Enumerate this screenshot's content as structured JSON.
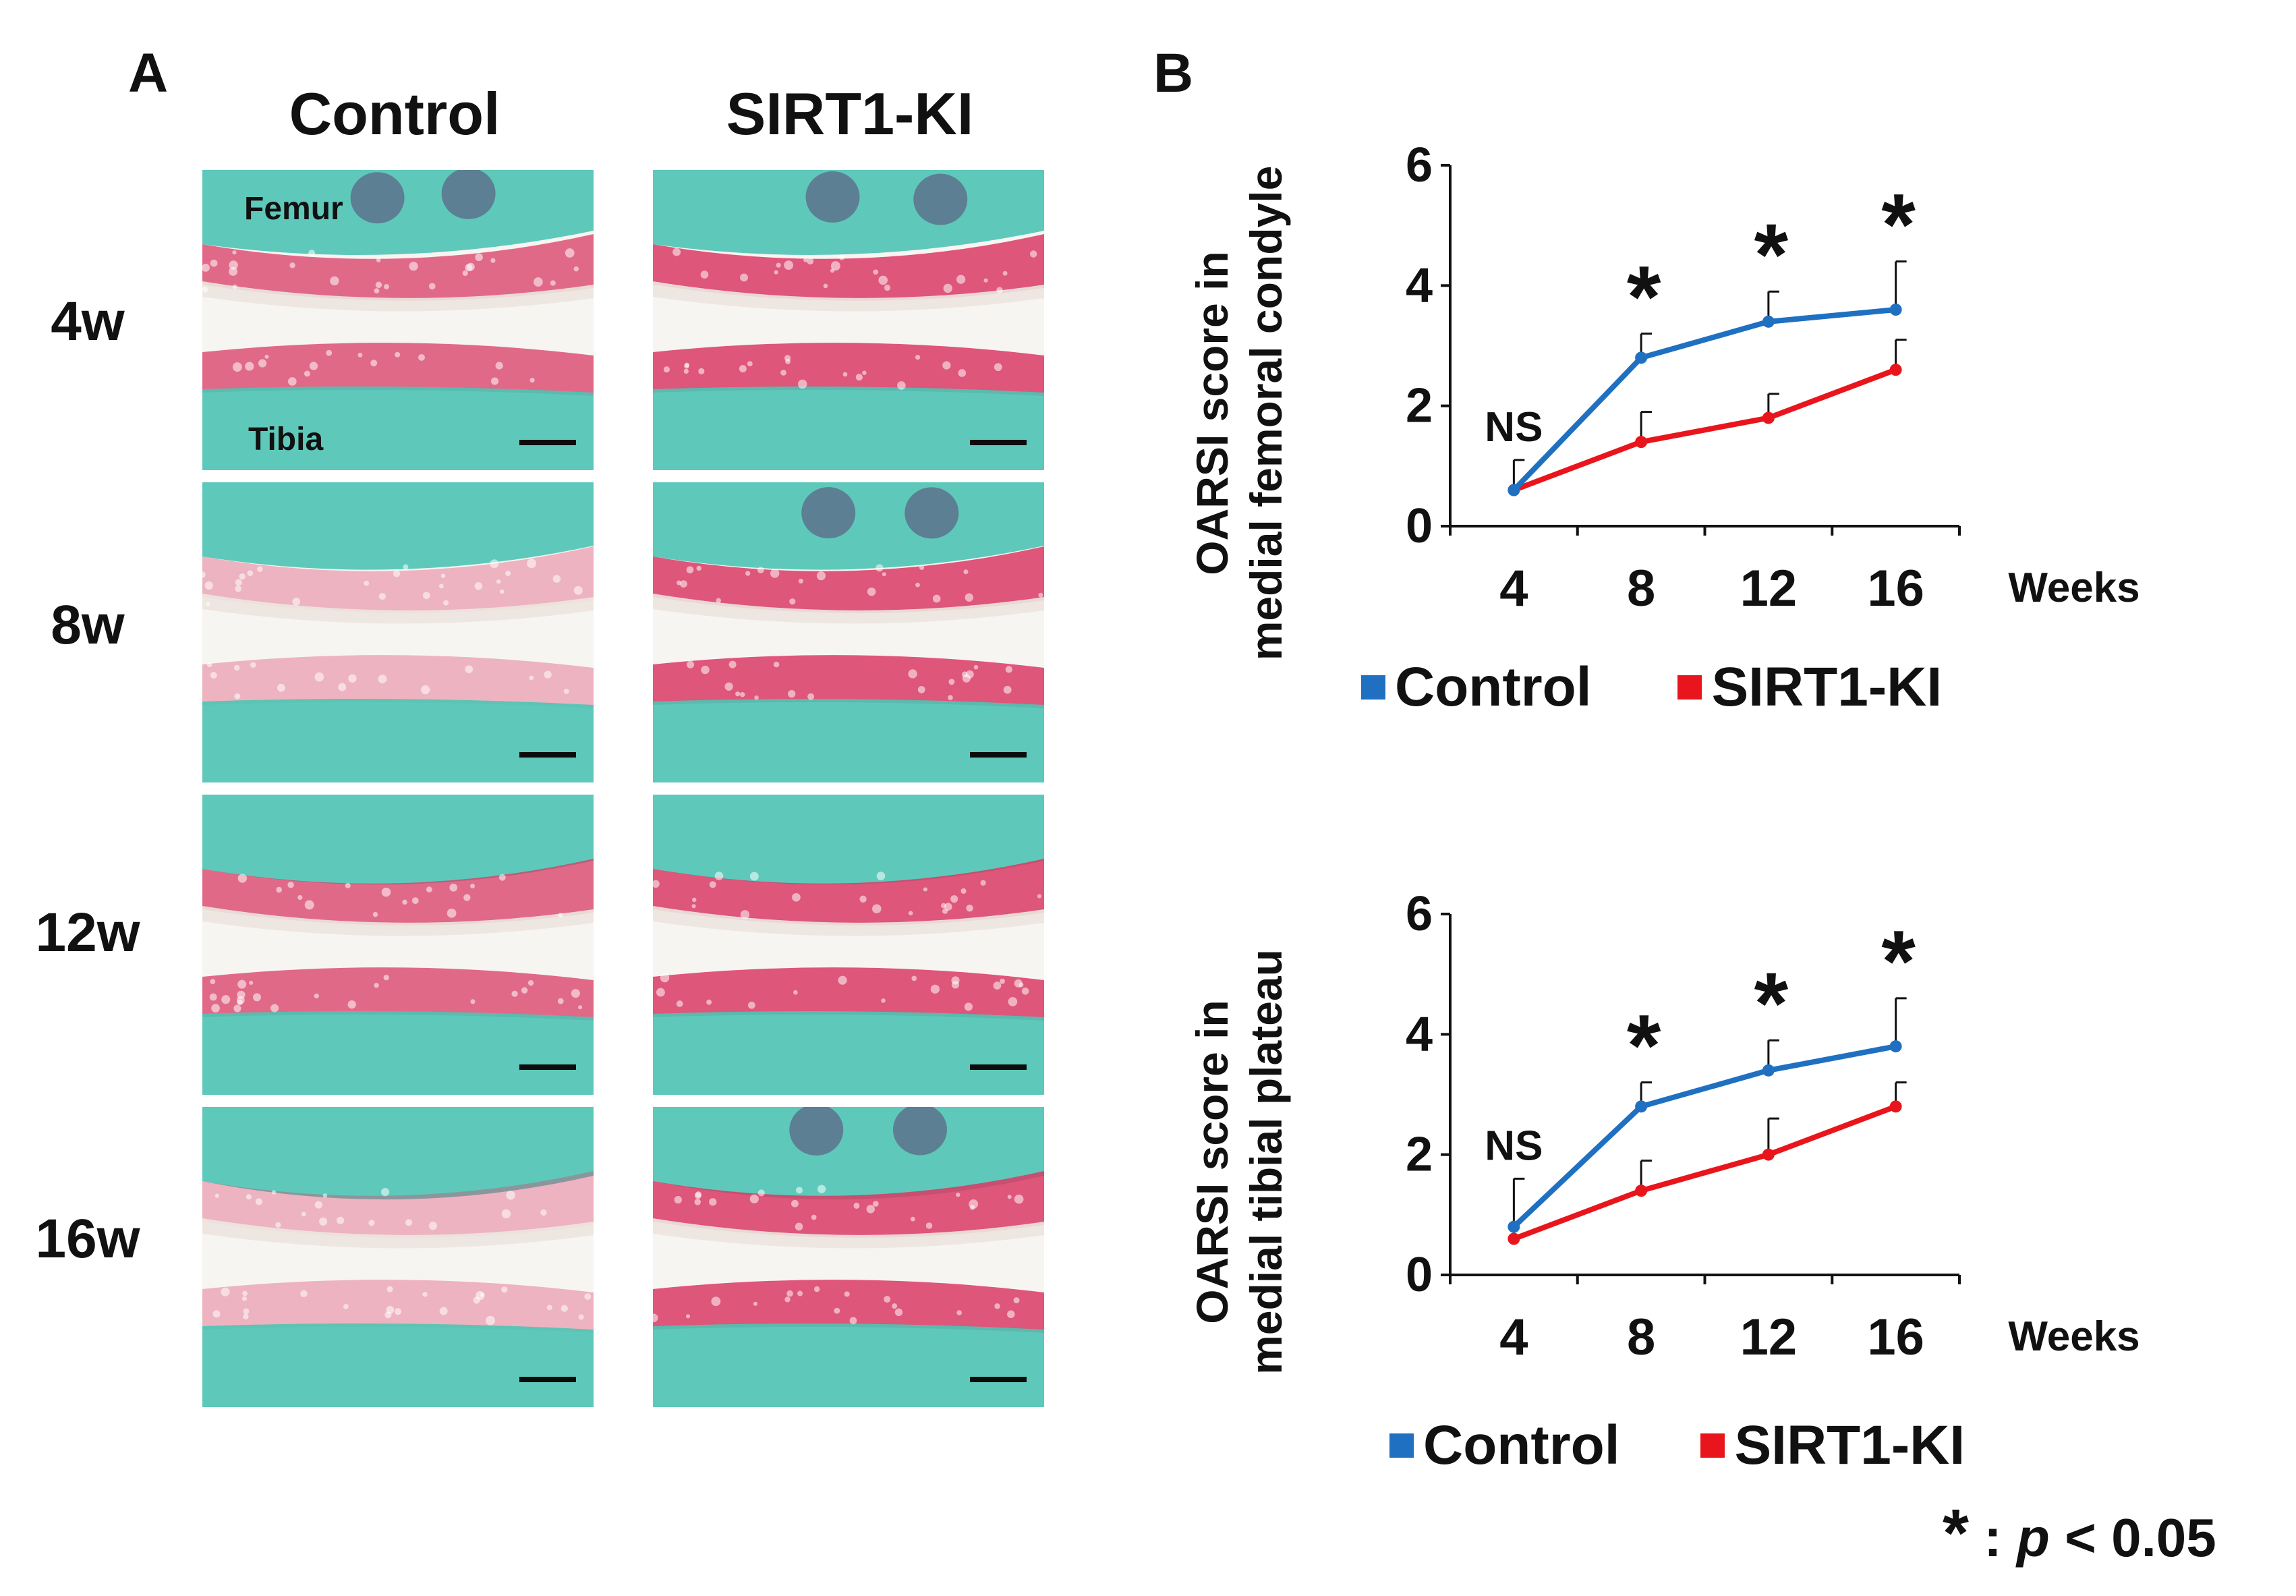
{
  "panel_a": {
    "letter": "A",
    "column_titles": [
      "Control",
      "SIRT1-KI"
    ],
    "row_labels": [
      "4w",
      "8w",
      "12w",
      "16w"
    ],
    "image_labels": {
      "femur": "Femur",
      "tibia": "Tibia"
    },
    "colors": {
      "cartilage_red": "#d93a64",
      "bone_cyan": "#4cc4b4",
      "matrix_white": "#ece6df",
      "marrow_purple": "#5b4f7a"
    }
  },
  "panel_b": {
    "letter": "B",
    "legend": {
      "control": "Control",
      "sirt1ki": "SIRT1-KI"
    },
    "footnote": {
      "symbol": "*",
      "colon": ":",
      "p": "p",
      "rest": "< 0.05"
    }
  },
  "chart_data": [
    {
      "type": "line",
      "title": "",
      "xlabel": "Weeks",
      "ylabel": "OARSI score in medial femoral condyle",
      "categories": [
        "4",
        "8",
        "12",
        "16"
      ],
      "ylim": [
        0,
        6
      ],
      "yticks": [
        "0",
        "2",
        "4",
        "6"
      ],
      "series": [
        {
          "name": "Control",
          "color": "#1f70c1",
          "values": [
            0.6,
            2.8,
            3.4,
            3.6
          ],
          "errors": [
            0.5,
            0.4,
            0.5,
            0.8
          ]
        },
        {
          "name": "SIRT1-KI",
          "color": "#e8161c",
          "values": [
            0.6,
            1.4,
            1.8,
            2.6
          ],
          "errors": [
            0.0,
            0.5,
            0.4,
            0.5
          ]
        }
      ],
      "annotations": [
        "NS",
        "*",
        "*",
        "*"
      ]
    },
    {
      "type": "line",
      "title": "",
      "xlabel": "Weeks",
      "ylabel": "OARSI score in medial tibial plateau",
      "categories": [
        "4",
        "8",
        "12",
        "16"
      ],
      "ylim": [
        0,
        6
      ],
      "yticks": [
        "0",
        "2",
        "4",
        "6"
      ],
      "series": [
        {
          "name": "Control",
          "color": "#1f70c1",
          "values": [
            0.8,
            2.8,
            3.4,
            3.8
          ],
          "errors": [
            0.8,
            0.4,
            0.5,
            0.8
          ]
        },
        {
          "name": "SIRT1-KI",
          "color": "#e8161c",
          "values": [
            0.6,
            1.4,
            2.0,
            2.8
          ],
          "errors": [
            0.0,
            0.5,
            0.6,
            0.4
          ]
        }
      ],
      "annotations": [
        "NS",
        "*",
        "*",
        "*"
      ]
    }
  ]
}
